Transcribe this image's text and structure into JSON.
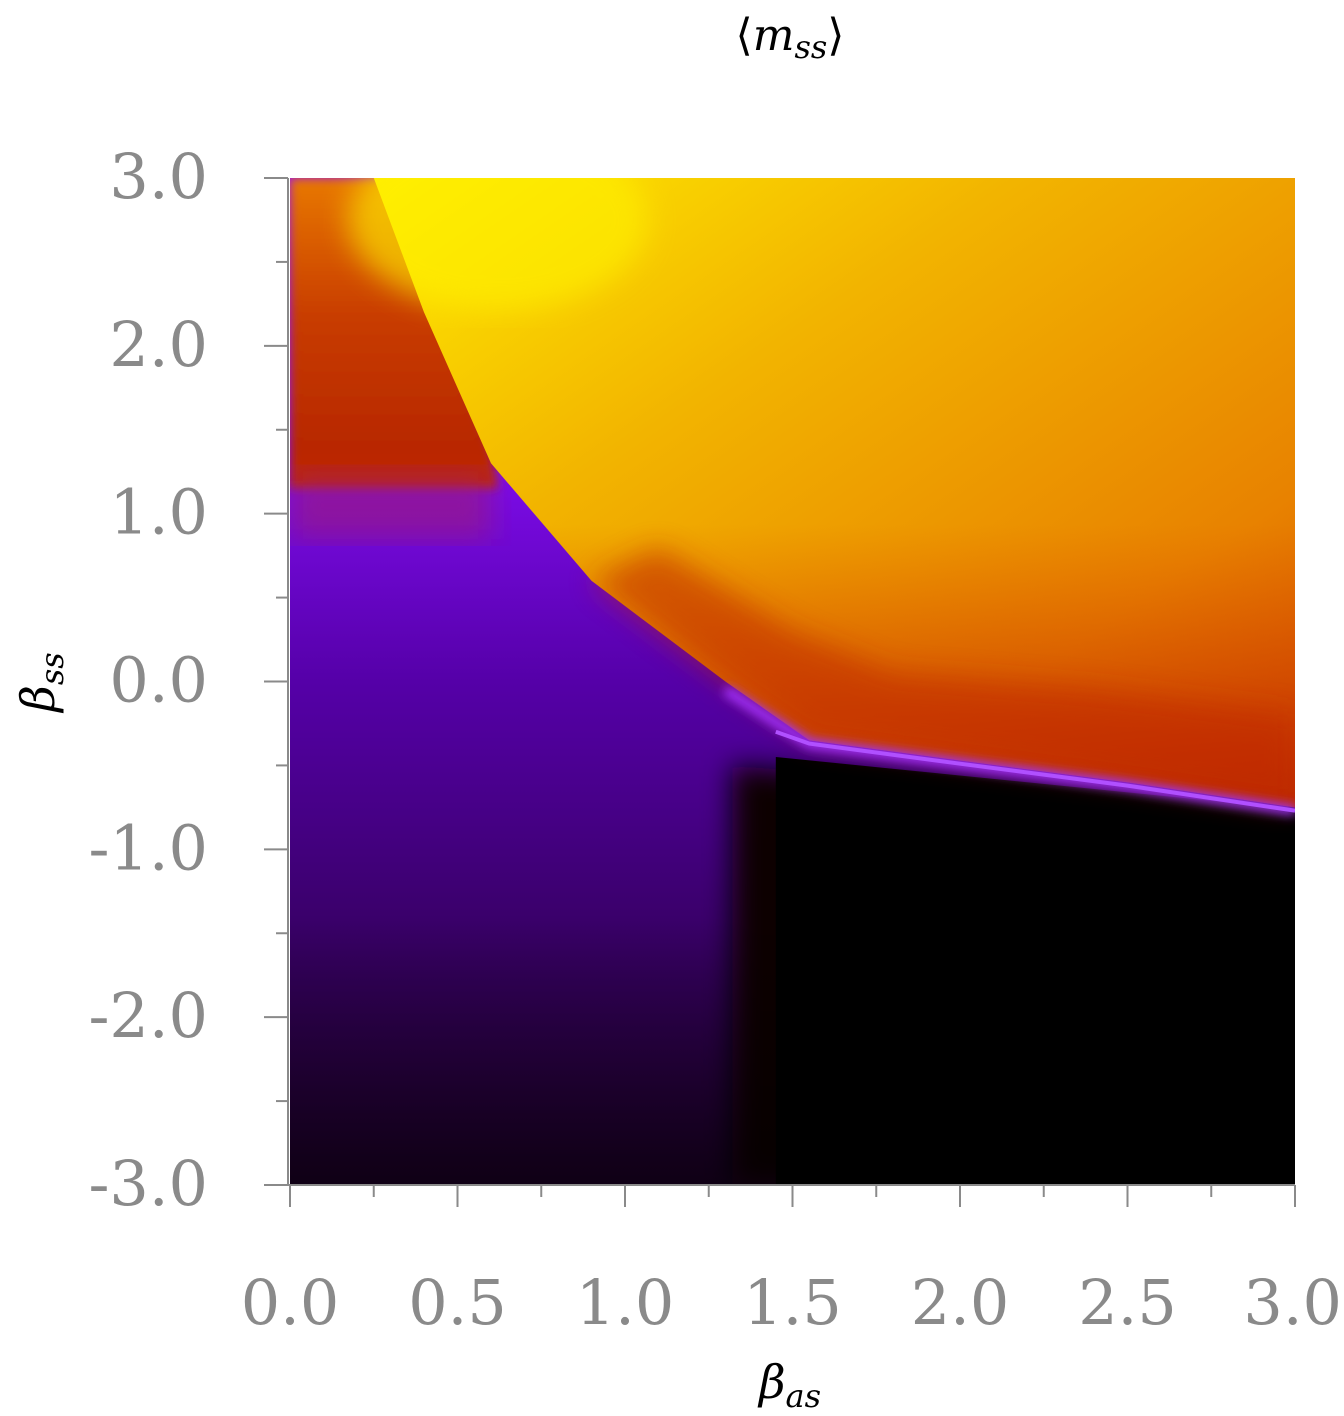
{
  "chart_data": {
    "type": "heatmap",
    "title": "⟨m_ss⟩",
    "title_parts": {
      "open": "⟨",
      "base": "m",
      "sub": "ss",
      "close": "⟩"
    },
    "xlabel": "β_as",
    "xlabel_parts": {
      "base": "β",
      "sub": "as"
    },
    "ylabel": "β_ss",
    "ylabel_parts": {
      "base": "β",
      "sub": "ss"
    },
    "xlim": [
      0.0,
      3.0
    ],
    "ylim": [
      -3.0,
      3.0
    ],
    "x_ticks": [
      {
        "value": 0.0,
        "label": "0.0"
      },
      {
        "value": 0.5,
        "label": "0.5"
      },
      {
        "value": 1.0,
        "label": "1.0"
      },
      {
        "value": 1.5,
        "label": "1.5"
      },
      {
        "value": 2.0,
        "label": "2.0"
      },
      {
        "value": 2.5,
        "label": "2.5"
      },
      {
        "value": 3.0,
        "label": "3.0"
      }
    ],
    "y_ticks": [
      {
        "value": 3.0,
        "label": "3.0"
      },
      {
        "value": 2.0,
        "label": "2.0"
      },
      {
        "value": 1.0,
        "label": "1.0"
      },
      {
        "value": 0.0,
        "label": "0.0"
      },
      {
        "value": -1.0,
        "label": "-1.0"
      },
      {
        "value": -2.0,
        "label": "-2.0"
      },
      {
        "value": -3.0,
        "label": "-3.0"
      }
    ],
    "x_minor_step": 0.25,
    "y_minor_step": 0.5,
    "grid": false,
    "legend": "none",
    "colorbar": "none",
    "colormap": "gnuplot",
    "colormap_stops": [
      "#000000",
      "#2e0038",
      "#5000a0",
      "#8a10ff",
      "#b01f5a",
      "#c02a00",
      "#e06a00",
      "#eea000",
      "#ffee00"
    ],
    "regions": [
      {
        "name": "upper-left orange-red region",
        "x_range": [
          0.0,
          0.6
        ],
        "y_range": [
          1.1,
          3.0
        ],
        "color": "#d05000"
      },
      {
        "name": "bright yellow region",
        "x_range": [
          0.3,
          3.0
        ],
        "y_range": [
          0.0,
          3.0
        ],
        "color": "#f2b800"
      },
      {
        "name": "purple region",
        "x_range": [
          0.0,
          1.5
        ],
        "y_range": [
          -1.5,
          1.1
        ],
        "color": "#8a10ff"
      },
      {
        "name": "black region",
        "x_range": [
          1.4,
          3.0
        ],
        "y_range": [
          -3.0,
          -0.5
        ],
        "color": "#000000"
      }
    ],
    "boundaries": [
      {
        "name": "yellow / orange boundary",
        "points": [
          [
            0.25,
            3.0
          ],
          [
            0.4,
            2.2
          ],
          [
            0.6,
            1.3
          ],
          [
            0.9,
            0.6
          ],
          [
            1.3,
            0.0
          ],
          [
            1.55,
            -0.35
          ]
        ]
      },
      {
        "name": "bright violet ridge",
        "points": [
          [
            1.5,
            -0.35
          ],
          [
            2.0,
            -0.47
          ],
          [
            2.5,
            -0.6
          ],
          [
            3.0,
            -0.75
          ]
        ]
      }
    ]
  }
}
